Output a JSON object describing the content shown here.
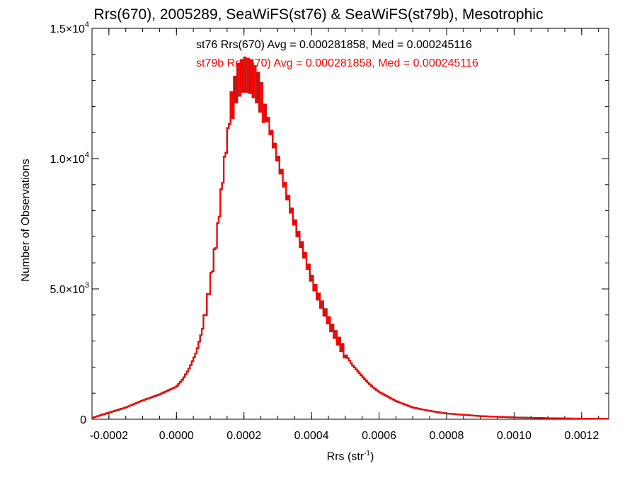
{
  "chart_data": {
    "type": "histogram",
    "title": "Rrs(670), 2005289, SeaWiFS(st76) & SeaWiFS(st79b), Mesotrophic",
    "xlabel": "Rrs (str",
    "xlabel_sup": "-1",
    "xlabel_end": ")",
    "ylabel": "Number of Observations",
    "xlim": [
      -0.00025,
      0.00128
    ],
    "ylim": [
      0,
      15000
    ],
    "x_ticks": [
      {
        "value": -0.0002,
        "label": "-0.0002"
      },
      {
        "value": 0.0,
        "label": "0.0000"
      },
      {
        "value": 0.0002,
        "label": "0.0002"
      },
      {
        "value": 0.0004,
        "label": "0.0004"
      },
      {
        "value": 0.0006,
        "label": "0.0006"
      },
      {
        "value": 0.0008,
        "label": "0.0008"
      },
      {
        "value": 0.001,
        "label": "0.0010"
      },
      {
        "value": 0.0012,
        "label": "0.0012"
      }
    ],
    "y_ticks": [
      {
        "value": 0,
        "label": "0",
        "exp": ""
      },
      {
        "value": 5000,
        "label": "5.0×10",
        "exp": "3"
      },
      {
        "value": 10000,
        "label": "1.0×10",
        "exp": "4"
      },
      {
        "value": 15000,
        "label": "1.5×10",
        "exp": "4"
      }
    ],
    "annotations": [
      {
        "text": "st76 Rrs(670) Avg = 0.000281858, Med = 0.000245116",
        "color": "#000000"
      },
      {
        "text": "st79b Rrs(670) Avg = 0.000281858, Med = 0.000245116",
        "color": "#ff0000"
      }
    ],
    "series": [
      {
        "name": "st76",
        "color": "#000000",
        "bin_start": -0.00025,
        "bin_width": 5e-06,
        "values_note_free": true,
        "values": []
      },
      {
        "name": "st79b",
        "color": "#ff0000",
        "bin_start": -0.00025,
        "bin_width": 5e-06,
        "values": []
      }
    ],
    "profile_points": [
      [
        -0.00025,
        50
      ],
      [
        -0.0002,
        250
      ],
      [
        -0.00015,
        450
      ],
      [
        -0.0001,
        720
      ],
      [
        -5e-05,
        950
      ],
      [
        0.0,
        1250
      ],
      [
        2e-05,
        1550
      ],
      [
        4e-05,
        2000
      ],
      [
        6e-05,
        2600
      ],
      [
        8e-05,
        3600
      ],
      [
        0.0001,
        5200
      ],
      [
        0.00012,
        7000
      ],
      [
        0.00014,
        9600
      ],
      [
        0.00016,
        11800
      ],
      [
        0.00018,
        13000
      ],
      [
        0.0002,
        13300
      ],
      [
        0.00022,
        13200
      ],
      [
        0.00024,
        12800
      ],
      [
        0.00026,
        12000
      ],
      [
        0.00028,
        11000
      ],
      [
        0.0003,
        10000
      ],
      [
        0.00032,
        9000
      ],
      [
        0.00034,
        8000
      ],
      [
        0.00036,
        7100
      ],
      [
        0.00038,
        6300
      ],
      [
        0.0004,
        5400
      ],
      [
        0.00042,
        4700
      ],
      [
        0.00044,
        4100
      ],
      [
        0.00046,
        3500
      ],
      [
        0.00048,
        3000
      ],
      [
        0.0005,
        2500
      ],
      [
        0.00052,
        2100
      ],
      [
        0.00054,
        1800
      ],
      [
        0.00056,
        1500
      ],
      [
        0.00058,
        1250
      ],
      [
        0.0006,
        1050
      ],
      [
        0.00065,
        700
      ],
      [
        0.0007,
        450
      ],
      [
        0.00075,
        320
      ],
      [
        0.0008,
        220
      ],
      [
        0.0009,
        120
      ],
      [
        0.001,
        70
      ],
      [
        0.0011,
        40
      ],
      [
        0.0012,
        25
      ],
      [
        0.00128,
        15
      ]
    ],
    "grid": false,
    "legend": "top-center text annotations"
  }
}
